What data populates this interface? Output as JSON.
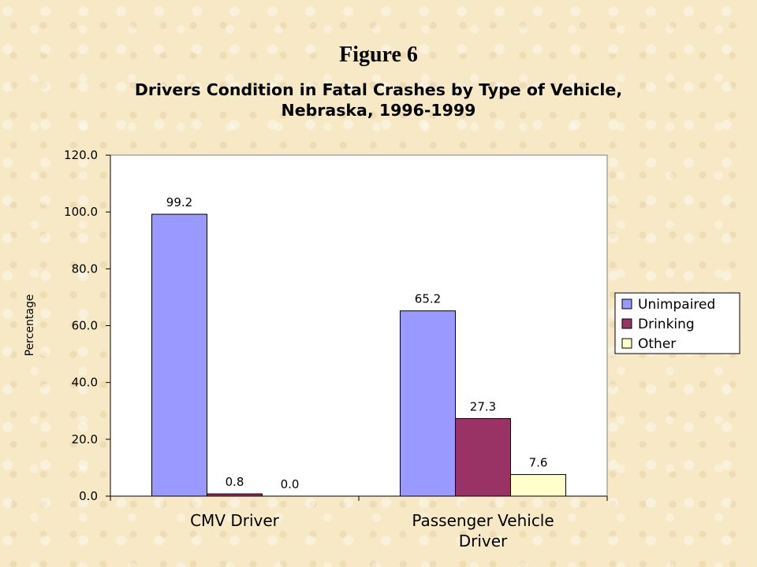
{
  "figure_label": "Figure 6",
  "chart_data": {
    "type": "bar",
    "title": [
      "Drivers Condition in Fatal Crashes by  Type of Vehicle,",
      "Nebraska, 1996-1999"
    ],
    "xlabel": "",
    "ylabel": "Percentage",
    "categories": [
      [
        "CMV Driver"
      ],
      [
        "Passenger Vehicle",
        "Driver"
      ]
    ],
    "series": [
      {
        "name": "Unimpaired",
        "color": "#9999ff",
        "values": [
          99.2,
          65.2
        ],
        "labels": [
          "99.2",
          "65.2"
        ]
      },
      {
        "name": "Drinking",
        "color": "#993366",
        "values": [
          0.8,
          27.3
        ],
        "labels": [
          "0.8",
          "27.3"
        ]
      },
      {
        "name": "Other",
        "color": "#ffffcc",
        "values": [
          0.0,
          7.6
        ],
        "labels": [
          "0.0",
          "7.6"
        ]
      }
    ],
    "ylim": [
      0,
      120
    ],
    "yticks": [
      "0.0",
      "20.0",
      "40.0",
      "60.0",
      "80.0",
      "100.0",
      "120.0"
    ],
    "grid": false,
    "legend_position": "right"
  }
}
